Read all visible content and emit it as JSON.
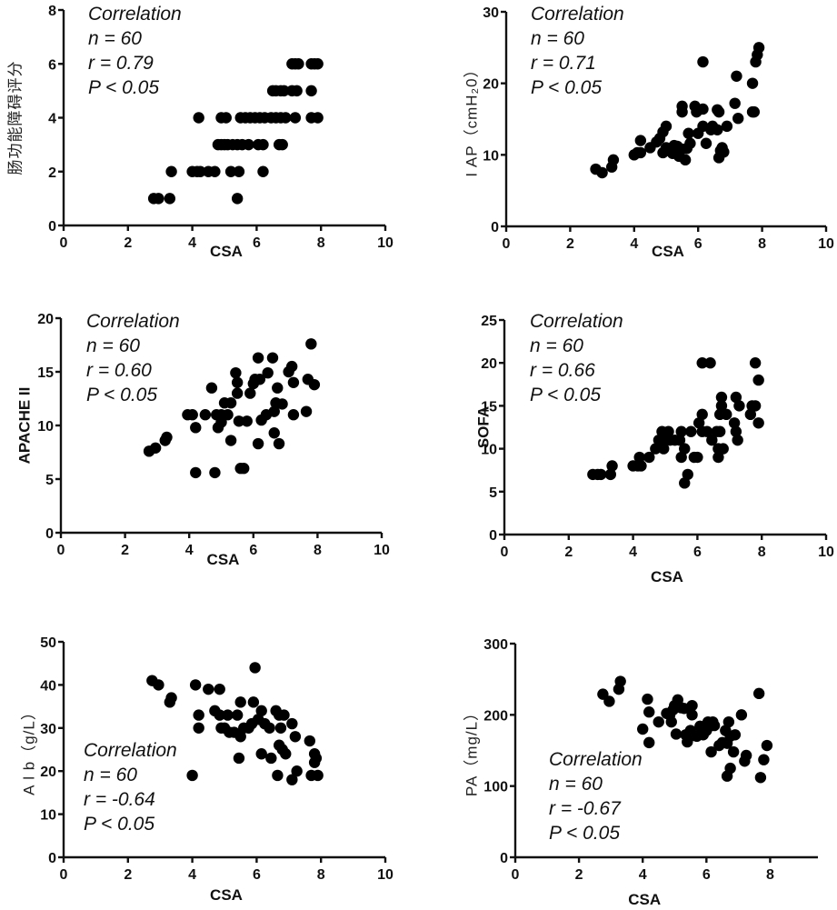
{
  "chart_data": [
    {
      "id": "p1",
      "type": "scatter",
      "xlabel": "CSA",
      "ylabel": "肠功能障碍评分",
      "ylabel_style": "light",
      "xlim": [
        0,
        10
      ],
      "ylim": [
        0,
        8
      ],
      "xticks": [
        0,
        2,
        4,
        6,
        8,
        10
      ],
      "yticks": [
        0,
        2,
        4,
        6,
        8
      ],
      "annotation": [
        "Correlation",
        "n = 60",
        "r = 0.79",
        "P < 0.05"
      ],
      "annotation_position": "top-left",
      "stats": {
        "n": 60,
        "r": 0.79,
        "p": "< 0.05"
      },
      "points": [
        [
          2.8,
          1
        ],
        [
          2.95,
          1
        ],
        [
          3.3,
          1
        ],
        [
          5.4,
          1
        ],
        [
          3.35,
          2
        ],
        [
          4.0,
          2
        ],
        [
          4.15,
          2
        ],
        [
          4.25,
          2
        ],
        [
          4.5,
          2
        ],
        [
          4.7,
          2
        ],
        [
          5.2,
          2
        ],
        [
          5.45,
          2
        ],
        [
          6.2,
          2
        ],
        [
          4.8,
          3
        ],
        [
          4.9,
          3
        ],
        [
          5.0,
          3
        ],
        [
          5.1,
          3
        ],
        [
          5.25,
          3
        ],
        [
          5.4,
          3
        ],
        [
          5.55,
          3
        ],
        [
          5.75,
          3
        ],
        [
          6.05,
          3
        ],
        [
          6.2,
          3
        ],
        [
          6.7,
          3
        ],
        [
          6.8,
          3
        ],
        [
          4.2,
          4
        ],
        [
          4.9,
          4
        ],
        [
          5.05,
          4
        ],
        [
          5.5,
          4
        ],
        [
          5.65,
          4
        ],
        [
          5.8,
          4
        ],
        [
          5.95,
          4
        ],
        [
          6.1,
          4
        ],
        [
          6.25,
          4
        ],
        [
          6.45,
          4
        ],
        [
          6.6,
          4
        ],
        [
          6.75,
          4
        ],
        [
          6.9,
          4
        ],
        [
          7.2,
          4
        ],
        [
          7.7,
          4
        ],
        [
          7.9,
          4
        ],
        [
          6.5,
          5
        ],
        [
          6.6,
          5
        ],
        [
          6.75,
          5
        ],
        [
          6.85,
          5
        ],
        [
          7.1,
          5
        ],
        [
          7.25,
          5
        ],
        [
          7.7,
          5
        ],
        [
          7.1,
          6
        ],
        [
          7.2,
          6
        ],
        [
          7.3,
          6
        ],
        [
          7.7,
          6
        ],
        [
          7.8,
          6
        ],
        [
          7.9,
          6
        ]
      ]
    },
    {
      "id": "p2",
      "type": "scatter",
      "xlabel": "CSA",
      "ylabel": "I AP（cmH₂0）",
      "ylabel_style": "light",
      "xlim": [
        0,
        10
      ],
      "ylim": [
        0,
        30
      ],
      "xticks": [
        0,
        2,
        4,
        6,
        8,
        10
      ],
      "yticks": [
        0,
        10,
        20,
        30
      ],
      "annotation": [
        "Correlation",
        "n = 60",
        "r = 0.71",
        "P < 0.05"
      ],
      "annotation_position": "top-left",
      "stats": {
        "n": 60,
        "r": 0.71,
        "p": "< 0.05"
      },
      "points": [
        [
          2.8,
          8
        ],
        [
          3.0,
          7.5
        ],
        [
          3.3,
          8.3
        ],
        [
          3.35,
          9.3
        ],
        [
          4.0,
          10
        ],
        [
          4.1,
          10.3
        ],
        [
          4.2,
          10.3
        ],
        [
          4.2,
          12
        ],
        [
          4.5,
          11
        ],
        [
          4.7,
          11.8
        ],
        [
          4.8,
          12.3
        ],
        [
          4.9,
          13.2
        ],
        [
          5.0,
          14
        ],
        [
          4.9,
          10.3
        ],
        [
          5.0,
          11
        ],
        [
          5.1,
          10.6
        ],
        [
          5.2,
          10.2
        ],
        [
          5.25,
          11.3
        ],
        [
          5.35,
          11.2
        ],
        [
          5.4,
          9.8
        ],
        [
          5.5,
          10.8
        ],
        [
          5.6,
          9.3
        ],
        [
          5.65,
          10.9
        ],
        [
          5.75,
          11.6
        ],
        [
          5.5,
          16
        ],
        [
          5.5,
          16.8
        ],
        [
          5.7,
          13
        ],
        [
          5.9,
          16.8
        ],
        [
          5.95,
          16
        ],
        [
          6.0,
          13
        ],
        [
          6.15,
          14
        ],
        [
          6.15,
          16.4
        ],
        [
          6.15,
          23
        ],
        [
          6.25,
          11.6
        ],
        [
          6.4,
          13.5
        ],
        [
          6.45,
          14
        ],
        [
          6.6,
          13.5
        ],
        [
          6.6,
          16.3
        ],
        [
          6.65,
          16
        ],
        [
          6.65,
          9.6
        ],
        [
          6.7,
          10.6
        ],
        [
          6.75,
          11
        ],
        [
          6.8,
          10.4
        ],
        [
          6.9,
          14
        ],
        [
          7.15,
          17.2
        ],
        [
          7.2,
          21
        ],
        [
          7.25,
          15.1
        ],
        [
          7.7,
          16
        ],
        [
          7.75,
          16
        ],
        [
          7.7,
          20
        ],
        [
          7.8,
          23
        ],
        [
          7.85,
          24
        ],
        [
          7.9,
          25
        ]
      ]
    },
    {
      "id": "p3",
      "type": "scatter",
      "xlabel": "CSA",
      "ylabel": "APACHE II",
      "ylabel_style": "bold",
      "xlim": [
        0,
        10
      ],
      "ylim": [
        0,
        20
      ],
      "xticks": [
        0,
        2,
        4,
        6,
        8,
        10
      ],
      "yticks": [
        0,
        5,
        10,
        15,
        20
      ],
      "annotation": [
        "Correlation",
        "n = 60",
        "r = 0.60",
        "P < 0.05"
      ],
      "annotation_position": "top-left",
      "stats": {
        "n": 60,
        "r": 0.6,
        "p": "< 0.05"
      },
      "points": [
        [
          2.75,
          7.6
        ],
        [
          2.95,
          7.9
        ],
        [
          3.25,
          8.6
        ],
        [
          3.3,
          8.9
        ],
        [
          3.95,
          11
        ],
        [
          4.1,
          11
        ],
        [
          4.2,
          9.8
        ],
        [
          4.2,
          5.6
        ],
        [
          4.5,
          11
        ],
        [
          4.7,
          13.5
        ],
        [
          4.8,
          5.6
        ],
        [
          4.85,
          11
        ],
        [
          4.9,
          9.8
        ],
        [
          5.0,
          10.3
        ],
        [
          5.0,
          11
        ],
        [
          5.1,
          12.1
        ],
        [
          5.2,
          11
        ],
        [
          5.3,
          8.6
        ],
        [
          5.3,
          12.1
        ],
        [
          5.45,
          14.9
        ],
        [
          5.5,
          13
        ],
        [
          5.5,
          14
        ],
        [
          5.55,
          10.4
        ],
        [
          5.6,
          6
        ],
        [
          5.7,
          6
        ],
        [
          5.8,
          10.4
        ],
        [
          5.9,
          13
        ],
        [
          6.0,
          13.9
        ],
        [
          6.05,
          14.3
        ],
        [
          6.15,
          16.3
        ],
        [
          6.15,
          8.3
        ],
        [
          6.2,
          14.3
        ],
        [
          6.25,
          10.5
        ],
        [
          6.4,
          11
        ],
        [
          6.45,
          14.9
        ],
        [
          6.6,
          16.3
        ],
        [
          6.65,
          9.3
        ],
        [
          6.65,
          11.3
        ],
        [
          6.7,
          12.1
        ],
        [
          6.75,
          13.5
        ],
        [
          6.8,
          8.3
        ],
        [
          6.9,
          12
        ],
        [
          7.1,
          15
        ],
        [
          7.2,
          15.5
        ],
        [
          7.25,
          14
        ],
        [
          7.25,
          11
        ],
        [
          7.65,
          11.3
        ],
        [
          7.7,
          14.3
        ],
        [
          7.8,
          17.6
        ],
        [
          7.9,
          13.8
        ]
      ]
    },
    {
      "id": "p4",
      "type": "scatter",
      "xlabel": "CSA",
      "ylabel": "SOFA",
      "ylabel_style": "bold",
      "xlim": [
        0,
        10
      ],
      "ylim": [
        0,
        25
      ],
      "xticks": [
        0,
        2,
        4,
        6,
        8,
        10
      ],
      "yticks": [
        0,
        5,
        10,
        15,
        20,
        25
      ],
      "annotation": [
        "Correlation",
        "n = 60",
        "r = 0.66",
        "P < 0.05"
      ],
      "annotation_position": "top-left",
      "stats": {
        "n": 60,
        "r": 0.66,
        "p": "< 0.05"
      },
      "points": [
        [
          2.75,
          7
        ],
        [
          2.9,
          7
        ],
        [
          3.0,
          7
        ],
        [
          3.3,
          7
        ],
        [
          3.35,
          8
        ],
        [
          4.0,
          8
        ],
        [
          4.15,
          8
        ],
        [
          4.2,
          9
        ],
        [
          4.25,
          8
        ],
        [
          4.5,
          9
        ],
        [
          4.7,
          10
        ],
        [
          4.8,
          11
        ],
        [
          4.9,
          12
        ],
        [
          4.95,
          10
        ],
        [
          5.0,
          11
        ],
        [
          5.1,
          12
        ],
        [
          5.15,
          11
        ],
        [
          5.3,
          11
        ],
        [
          5.45,
          11
        ],
        [
          5.5,
          12
        ],
        [
          5.5,
          9
        ],
        [
          5.6,
          10
        ],
        [
          5.6,
          6
        ],
        [
          5.7,
          7
        ],
        [
          5.8,
          12
        ],
        [
          5.9,
          9
        ],
        [
          6.0,
          9
        ],
        [
          6.05,
          13
        ],
        [
          6.15,
          14
        ],
        [
          6.15,
          12
        ],
        [
          6.15,
          20
        ],
        [
          6.3,
          12
        ],
        [
          6.4,
          20
        ],
        [
          6.45,
          11
        ],
        [
          6.6,
          12
        ],
        [
          6.65,
          9
        ],
        [
          6.65,
          10
        ],
        [
          6.7,
          12
        ],
        [
          6.7,
          14
        ],
        [
          6.75,
          15
        ],
        [
          6.75,
          16
        ],
        [
          6.8,
          10
        ],
        [
          6.9,
          14
        ],
        [
          7.15,
          13
        ],
        [
          7.2,
          16
        ],
        [
          7.2,
          12
        ],
        [
          7.25,
          11
        ],
        [
          7.3,
          15
        ],
        [
          7.65,
          14
        ],
        [
          7.7,
          15
        ],
        [
          7.8,
          15
        ],
        [
          7.8,
          20
        ],
        [
          7.9,
          18
        ],
        [
          7.9,
          13
        ]
      ]
    },
    {
      "id": "p5",
      "type": "scatter",
      "xlabel": "CSA",
      "ylabel": "A l b（g/L）",
      "ylabel_style": "light",
      "xlim": [
        0,
        10
      ],
      "ylim": [
        0,
        50
      ],
      "xticks": [
        0,
        2,
        4,
        6,
        8,
        10
      ],
      "yticks": [
        0,
        10,
        20,
        30,
        40,
        50
      ],
      "annotation": [
        "Correlation",
        "n = 60",
        "r = -0.64",
        "P < 0.05"
      ],
      "annotation_position": "bottom-left",
      "stats": {
        "n": 60,
        "r": -0.64,
        "p": "< 0.05"
      },
      "points": [
        [
          2.75,
          41
        ],
        [
          2.95,
          40
        ],
        [
          3.3,
          36
        ],
        [
          3.35,
          37
        ],
        [
          4.0,
          19
        ],
        [
          4.1,
          40
        ],
        [
          4.2,
          33
        ],
        [
          4.2,
          30
        ],
        [
          4.5,
          39
        ],
        [
          4.7,
          34
        ],
        [
          4.85,
          39
        ],
        [
          4.85,
          33
        ],
        [
          4.9,
          30
        ],
        [
          5.0,
          30
        ],
        [
          5.1,
          33
        ],
        [
          5.15,
          29
        ],
        [
          5.3,
          29
        ],
        [
          5.4,
          33
        ],
        [
          5.45,
          23
        ],
        [
          5.5,
          28
        ],
        [
          5.5,
          36
        ],
        [
          5.6,
          30
        ],
        [
          5.75,
          30
        ],
        [
          5.85,
          31
        ],
        [
          5.9,
          36
        ],
        [
          5.95,
          44
        ],
        [
          6.05,
          32
        ],
        [
          6.15,
          34
        ],
        [
          6.15,
          24
        ],
        [
          6.25,
          31
        ],
        [
          6.4,
          30
        ],
        [
          6.45,
          23
        ],
        [
          6.6,
          34
        ],
        [
          6.65,
          19
        ],
        [
          6.7,
          26
        ],
        [
          6.7,
          33
        ],
        [
          6.75,
          30
        ],
        [
          6.8,
          25
        ],
        [
          6.85,
          33
        ],
        [
          6.9,
          24
        ],
        [
          7.1,
          18
        ],
        [
          7.1,
          31
        ],
        [
          7.2,
          28
        ],
        [
          7.25,
          20
        ],
        [
          7.65,
          27
        ],
        [
          7.7,
          19
        ],
        [
          7.8,
          24
        ],
        [
          7.8,
          22
        ],
        [
          7.85,
          23
        ],
        [
          7.9,
          19
        ]
      ]
    },
    {
      "id": "p6",
      "type": "scatter",
      "xlabel": "CSA",
      "ylabel": "PA（mg/L）",
      "ylabel_style": "light",
      "xlim": [
        0,
        9.5
      ],
      "ylim": [
        0,
        300
      ],
      "xticks": [
        0,
        2,
        4,
        6,
        8
      ],
      "yticks": [
        0,
        100,
        200,
        300
      ],
      "annotation": [
        "Correlation",
        "n = 60",
        "r = -0.67",
        "P < 0.05"
      ],
      "annotation_position": "bottom-left",
      "stats": {
        "n": 60,
        "r": -0.67,
        "p": "< 0.05"
      },
      "points": [
        [
          2.75,
          229
        ],
        [
          2.95,
          219
        ],
        [
          3.25,
          236
        ],
        [
          3.3,
          247
        ],
        [
          4.0,
          180
        ],
        [
          4.15,
          222
        ],
        [
          4.2,
          204
        ],
        [
          4.2,
          161
        ],
        [
          4.5,
          190
        ],
        [
          4.75,
          202
        ],
        [
          4.85,
          200
        ],
        [
          4.9,
          190
        ],
        [
          4.95,
          207
        ],
        [
          5.0,
          213
        ],
        [
          5.05,
          173
        ],
        [
          5.1,
          221
        ],
        [
          5.2,
          210
        ],
        [
          5.3,
          209
        ],
        [
          5.35,
          172
        ],
        [
          5.4,
          162
        ],
        [
          5.5,
          178
        ],
        [
          5.55,
          213
        ],
        [
          5.55,
          200
        ],
        [
          5.6,
          171
        ],
        [
          5.7,
          170
        ],
        [
          5.8,
          184
        ],
        [
          5.85,
          180
        ],
        [
          5.9,
          172
        ],
        [
          6.0,
          178
        ],
        [
          6.05,
          190
        ],
        [
          6.1,
          184
        ],
        [
          6.15,
          148
        ],
        [
          6.2,
          190
        ],
        [
          6.25,
          185
        ],
        [
          6.4,
          157
        ],
        [
          6.5,
          161
        ],
        [
          6.6,
          178
        ],
        [
          6.65,
          160
        ],
        [
          6.65,
          114
        ],
        [
          6.7,
          190
        ],
        [
          6.75,
          125
        ],
        [
          6.75,
          170
        ],
        [
          6.85,
          148
        ],
        [
          6.9,
          172
        ],
        [
          7.1,
          200
        ],
        [
          7.2,
          135
        ],
        [
          7.25,
          143
        ],
        [
          7.65,
          230
        ],
        [
          7.7,
          112
        ],
        [
          7.8,
          137
        ],
        [
          7.9,
          157
        ]
      ]
    }
  ]
}
